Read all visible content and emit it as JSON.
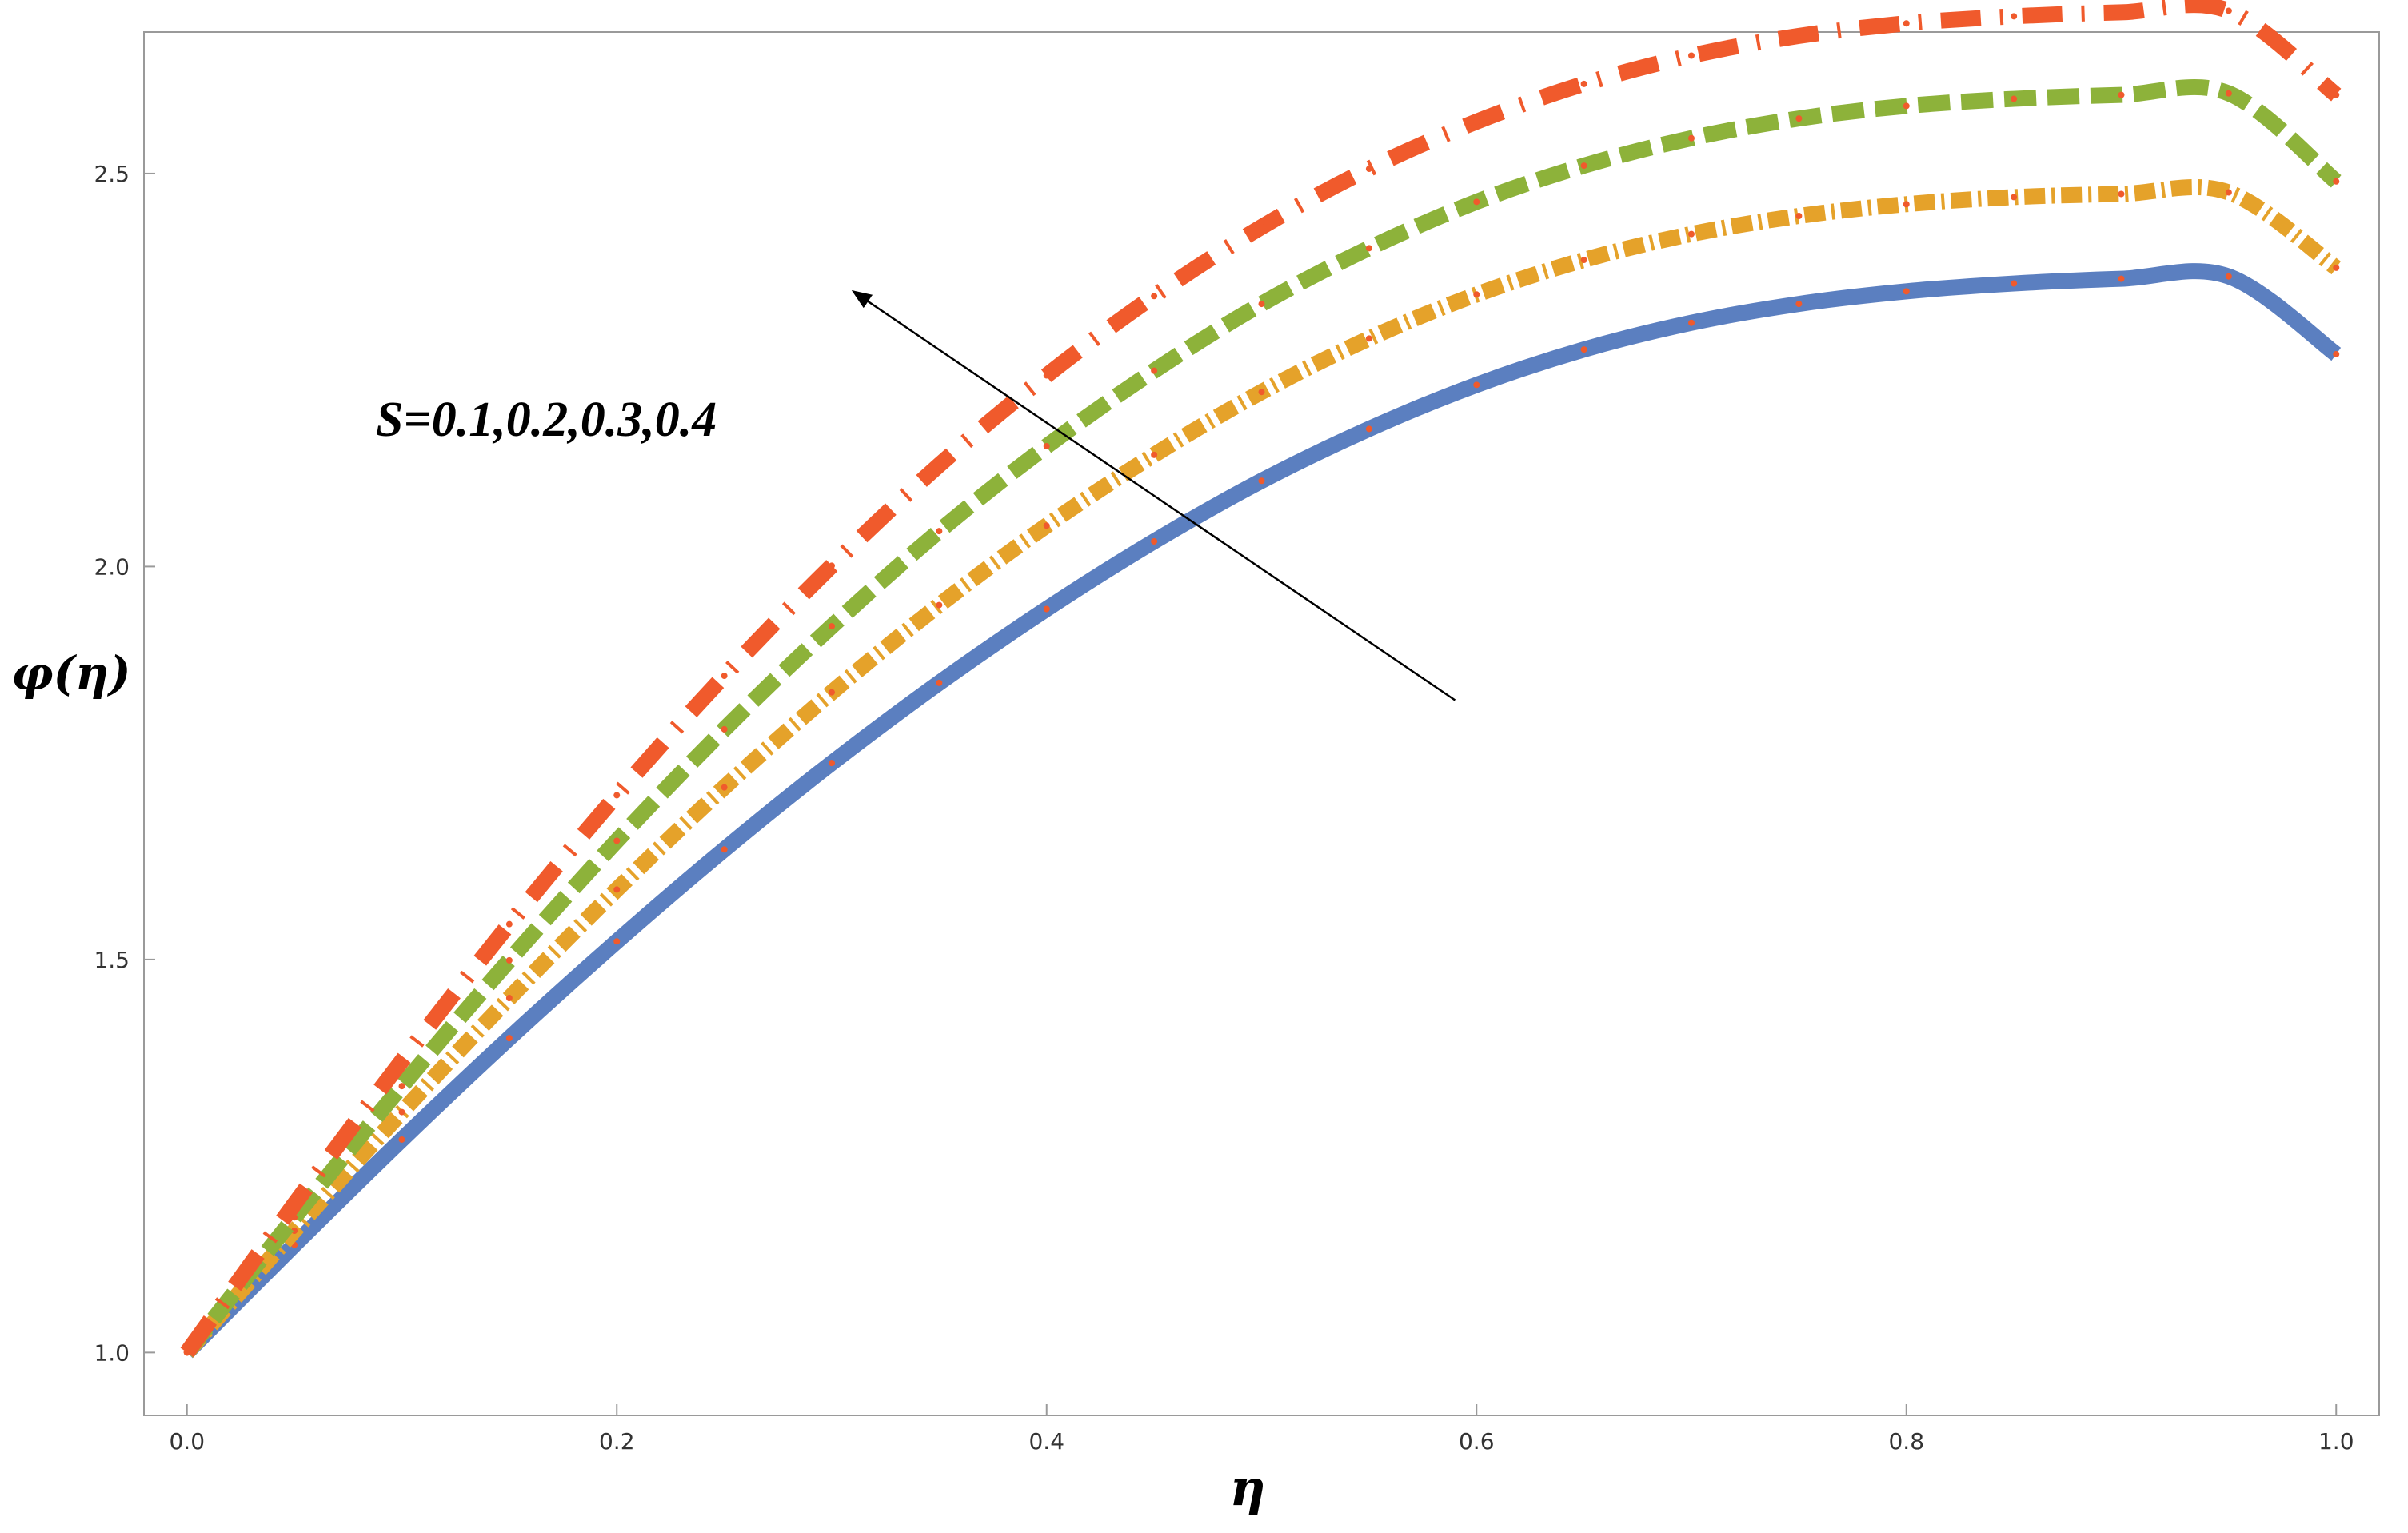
{
  "chart_data": {
    "type": "line",
    "title": "",
    "xlabel": "η",
    "ylabel": "φ(η)",
    "xlim": [
      -0.02,
      1.02
    ],
    "ylim": [
      0.92,
      2.68
    ],
    "xticks": [
      "0.0",
      "0.2",
      "0.4",
      "0.6",
      "0.8",
      "1.0"
    ],
    "yticks": [
      "1.0",
      "1.5",
      "2.0",
      "2.5"
    ],
    "grid": false,
    "x": [
      0.0,
      0.05,
      0.1,
      0.15,
      0.2,
      0.25,
      0.3,
      0.35,
      0.4,
      0.45,
      0.5,
      0.55,
      0.6,
      0.65,
      0.7,
      0.75,
      0.8,
      0.85,
      0.9,
      0.95,
      1.0
    ],
    "series": [
      {
        "color": "#5b7fc0",
        "style": "solid",
        "values": [
          1.0,
          1.137,
          1.271,
          1.4,
          1.523,
          1.64,
          1.75,
          1.852,
          1.946,
          2.032,
          2.109,
          2.175,
          2.231,
          2.276,
          2.31,
          2.334,
          2.35,
          2.36,
          2.366,
          2.369,
          2.27
        ]
      },
      {
        "color": "#e5a22a",
        "style": "dash-dot",
        "values": [
          1.0,
          1.155,
          1.306,
          1.451,
          1.589,
          1.719,
          1.84,
          1.951,
          2.052,
          2.142,
          2.222,
          2.29,
          2.346,
          2.39,
          2.423,
          2.446,
          2.461,
          2.47,
          2.474,
          2.476,
          2.38
        ]
      },
      {
        "color": "#8db23a",
        "style": "dashed",
        "values": [
          1.0,
          1.172,
          1.339,
          1.499,
          1.651,
          1.793,
          1.924,
          2.045,
          2.153,
          2.249,
          2.334,
          2.405,
          2.464,
          2.51,
          2.545,
          2.57,
          2.586,
          2.595,
          2.6,
          2.602,
          2.49
        ]
      },
      {
        "color": "#f05a2c",
        "style": "long-dash",
        "values": [
          1.0,
          1.189,
          1.371,
          1.545,
          1.709,
          1.861,
          2.001,
          2.129,
          2.243,
          2.344,
          2.432,
          2.506,
          2.566,
          2.614,
          2.65,
          2.675,
          2.691,
          2.7,
          2.705,
          2.707,
          2.6
        ]
      }
    ],
    "annotation": {
      "text": "S=0.1,0.2,0.3,0.4",
      "arrow": {
        "from": [
          0.59,
          1.83
        ],
        "to": [
          0.31,
          2.35
        ]
      }
    },
    "legend": "none"
  }
}
